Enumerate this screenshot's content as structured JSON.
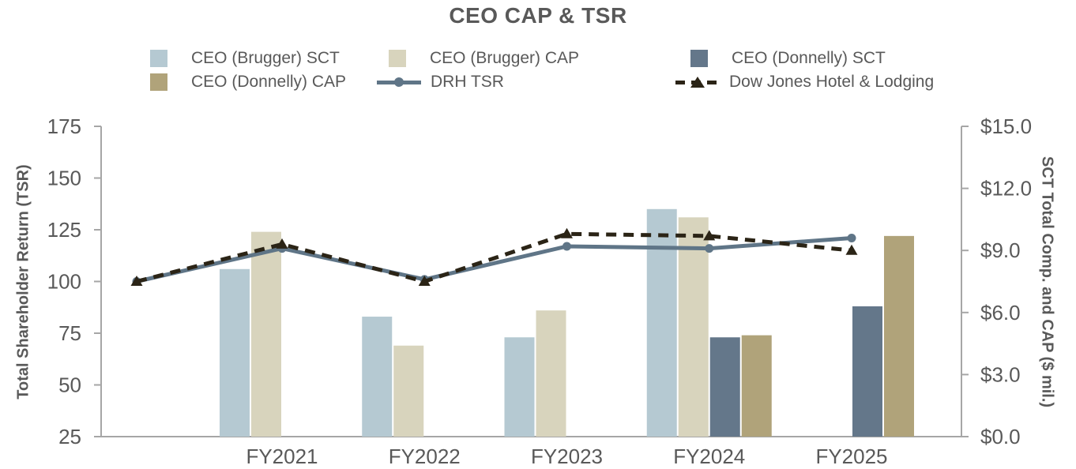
{
  "title": "CEO CAP & TSR",
  "colors": {
    "text": "#595959",
    "axis_line": "#a6a6a6",
    "background": "#ffffff",
    "brugger_sct": "#b5c9d2",
    "brugger_cap": "#d8d4bd",
    "donnelly_sct": "#64778a",
    "donnelly_cap": "#b0a37a",
    "drh_tsr_line": "#5f7587",
    "dow_jones_line": "#2b2416"
  },
  "legend": {
    "items": [
      {
        "label": "CEO (Brugger) SCT",
        "type": "swatch",
        "color": "#b5c9d2"
      },
      {
        "label": "CEO (Brugger) CAP",
        "type": "swatch",
        "color": "#d8d4bd"
      },
      {
        "label": "CEO (Donnelly) SCT",
        "type": "swatch",
        "color": "#64778a"
      },
      {
        "label": "CEO (Donnelly) CAP",
        "type": "swatch",
        "color": "#b0a37a"
      },
      {
        "label": "DRH TSR",
        "type": "line-solid",
        "color": "#5f7587"
      },
      {
        "label": "Dow Jones Hotel & Lodging",
        "type": "line-dashed",
        "color": "#2b2416"
      }
    ]
  },
  "left_axis": {
    "title": "Total Shareholder Return (TSR)",
    "min": 25,
    "max": 175,
    "ticks": [
      175,
      150,
      125,
      100,
      75,
      50,
      25
    ]
  },
  "right_axis": {
    "title": "SCT Total Comp. and CAP ($ mil.)",
    "min": 0,
    "max": 15,
    "ticks": [
      {
        "value": 15,
        "label": "$15.0"
      },
      {
        "value": 12,
        "label": "$12.0"
      },
      {
        "value": 9,
        "label": "$9.0"
      },
      {
        "value": 6,
        "label": "$6.0"
      },
      {
        "value": 3,
        "label": "$3.0"
      },
      {
        "value": 0,
        "label": "$0.0"
      }
    ]
  },
  "chart_data": {
    "type": "combo-bar-line",
    "categories": [
      "FY2021",
      "FY2022",
      "FY2023",
      "FY2024",
      "FY2025"
    ],
    "bar_series": [
      {
        "name": "CEO (Brugger) SCT",
        "axis": "right",
        "color": "#b5c9d2",
        "values": [
          8.1,
          5.8,
          4.8,
          11.0,
          null
        ]
      },
      {
        "name": "CEO (Brugger) CAP",
        "axis": "right",
        "color": "#d8d4bd",
        "values": [
          9.9,
          4.4,
          6.1,
          10.6,
          null
        ]
      },
      {
        "name": "CEO (Donnelly) SCT",
        "axis": "right",
        "color": "#64778a",
        "values": [
          null,
          null,
          null,
          4.8,
          6.3
        ]
      },
      {
        "name": "CEO (Donnelly) CAP",
        "axis": "right",
        "color": "#b0a37a",
        "values": [
          null,
          null,
          null,
          4.9,
          9.7
        ]
      }
    ],
    "line_series": [
      {
        "name": "DRH TSR",
        "axis": "left",
        "style": "solid",
        "marker": "circle",
        "color": "#5f7587",
        "start_value": 100,
        "values": [
          116,
          101,
          117,
          116,
          121
        ]
      },
      {
        "name": "Dow Jones Hotel & Lodging",
        "axis": "left",
        "style": "dashed",
        "marker": "triangle",
        "color": "#2b2416",
        "start_value": 100,
        "values": [
          118,
          100,
          123,
          122,
          115
        ]
      }
    ],
    "left_ylim": [
      25,
      175
    ],
    "right_ylim": [
      0,
      15
    ],
    "grid": false,
    "legend_position": "top"
  }
}
